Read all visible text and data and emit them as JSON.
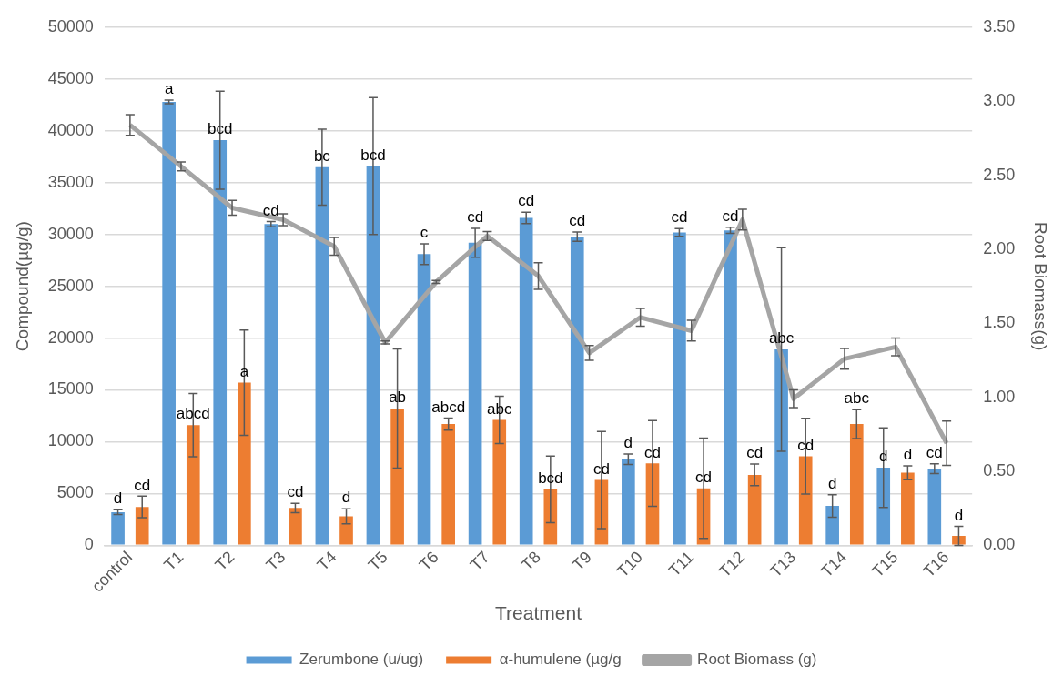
{
  "chart_data": {
    "type": "bar",
    "xlabel": "Treatment",
    "ylabel": "Compound(µg/g)",
    "y2label": "Root Biomass(g)",
    "categories": [
      "control",
      "T1",
      "T2",
      "T3",
      "T4",
      "T5",
      "T6",
      "T7",
      "T8",
      "T9",
      "T10",
      "T11",
      "T12",
      "T13",
      "T14",
      "T15",
      "T16"
    ],
    "series": [
      {
        "name": "Zerumbone (u/ug)",
        "color": "#5b9bd5",
        "values": [
          3200,
          42800,
          39100,
          31000,
          36500,
          36600,
          28100,
          29200,
          31600,
          29800,
          8300,
          30200,
          30400,
          18900,
          3800,
          7500,
          7400
        ],
        "errors": [
          230,
          170,
          4740,
          250,
          3670,
          6610,
          1000,
          1390,
          550,
          450,
          500,
          370,
          300,
          9820,
          1090,
          3840,
          470
        ],
        "value_labels": [
          "d",
          "a",
          "bcd",
          "cd",
          "bc",
          "bcd",
          "c",
          "cd",
          "cd",
          "cd",
          "d",
          "cd",
          "cd",
          "abc",
          "d",
          "d",
          "cd"
        ]
      },
      {
        "name": "α-humulene (µg/g",
        "color": "#ed7d31",
        "values": [
          3700,
          11600,
          15700,
          3600,
          2800,
          13200,
          11700,
          12100,
          5400,
          6300,
          7900,
          5500,
          6800,
          8600,
          11700,
          7000,
          900
        ],
        "errors": [
          1040,
          3060,
          5080,
          450,
          730,
          5760,
          580,
          2290,
          3220,
          4680,
          4140,
          4840,
          1040,
          3660,
          1400,
          670,
          920
        ],
        "value_labels": [
          "cd",
          "abcd",
          "a",
          "cd",
          "d",
          "ab",
          "abcd",
          "abc",
          "bcd",
          "cd",
          "cd",
          "cd",
          "cd",
          "cd",
          "abc",
          "d",
          "d"
        ]
      },
      {
        "name": "Root Biomass (g)",
        "type": "line",
        "axis": "y2",
        "color": "#a5a5a5",
        "values": [
          2.84,
          2.56,
          2.28,
          2.2,
          2.02,
          1.37,
          1.78,
          2.09,
          1.82,
          1.3,
          1.54,
          1.45,
          2.2,
          0.99,
          1.26,
          1.34,
          0.69
        ],
        "errors": [
          0.07,
          0.03,
          0.05,
          0.04,
          0.06,
          0.01,
          0.01,
          0.03,
          0.09,
          0.05,
          0.06,
          0.07,
          0.07,
          0.06,
          0.07,
          0.06,
          0.15
        ]
      }
    ],
    "ylim": [
      0,
      50000
    ],
    "yticks": [
      0,
      5000,
      10000,
      15000,
      20000,
      25000,
      30000,
      35000,
      40000,
      45000,
      50000
    ],
    "y2lim": [
      0,
      3.5
    ],
    "y2ticks": [
      {
        "value": 0,
        "label": "0.00"
      },
      {
        "value": 0.5,
        "label": "0.50"
      },
      {
        "value": 1,
        "label": "1.00"
      },
      {
        "value": 1.5,
        "label": "1.50"
      },
      {
        "value": 2,
        "label": "2.00"
      },
      {
        "value": 2.5,
        "label": "2.50"
      },
      {
        "value": 3,
        "label": "3.00"
      },
      {
        "value": 3.5,
        "label": "3.50"
      }
    ],
    "grid": "y",
    "legend": "bottom",
    "marker": "none",
    "line_style": "solid"
  }
}
